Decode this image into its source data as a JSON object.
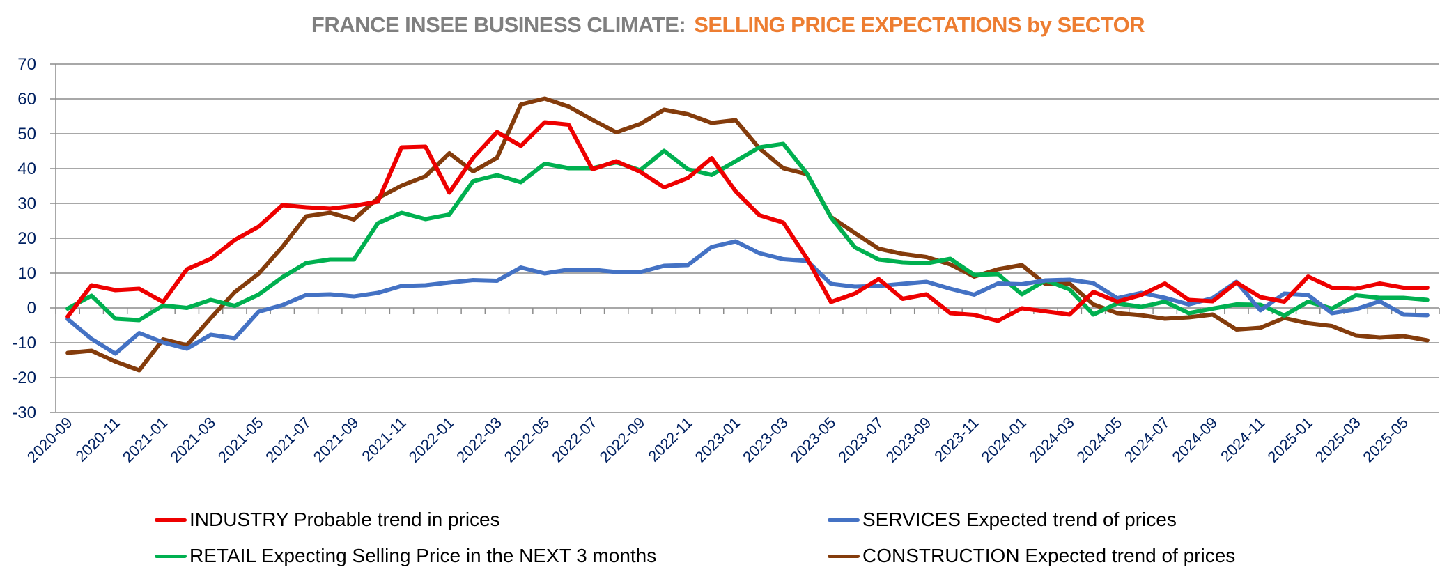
{
  "chart_data": {
    "type": "line",
    "title": "FRANCE INSEE BUSINESS CLIMATE:",
    "title_highlight": "SELLING PRICE EXPECTATIONS by SECTOR",
    "xlabel": "",
    "ylabel": "",
    "ylim": [
      -30,
      70
    ],
    "y_ticks": [
      70,
      60,
      50,
      40,
      30,
      20,
      10,
      0,
      -10,
      -20,
      -30
    ],
    "grid": true,
    "legend_position": "bottom",
    "x": [
      "2020-09",
      "2020-10",
      "2020-11",
      "2020-12",
      "2021-01",
      "2021-02",
      "2021-03",
      "2021-04",
      "2021-05",
      "2021-06",
      "2021-07",
      "2021-08",
      "2021-09",
      "2021-10",
      "2021-11",
      "2021-12",
      "2022-01",
      "2022-02",
      "2022-03",
      "2022-04",
      "2022-05",
      "2022-06",
      "2022-07",
      "2022-08",
      "2022-09",
      "2022-10",
      "2022-11",
      "2022-12",
      "2023-01",
      "2023-02",
      "2023-03",
      "2023-04",
      "2023-05",
      "2023-06",
      "2023-07",
      "2023-08",
      "2023-09",
      "2023-10",
      "2023-11",
      "2023-12",
      "2024-01",
      "2024-02",
      "2024-03",
      "2024-04",
      "2024-05",
      "2024-06",
      "2024-07",
      "2024-08",
      "2024-09",
      "2024-10",
      "2024-11",
      "2024-12",
      "2025-01",
      "2025-02",
      "2025-03",
      "2025-04",
      "2025-05",
      "2025-06"
    ],
    "x_tick_labels": [
      "2020-09",
      "2020-11",
      "2021-01",
      "2021-03",
      "2021-05",
      "2021-07",
      "2021-09",
      "2021-11",
      "2022-01",
      "2022-03",
      "2022-05",
      "2022-07",
      "2022-09",
      "2022-11",
      "2023-01",
      "2023-03",
      "2023-05",
      "2023-07",
      "2023-09",
      "2023-11",
      "2024-01",
      "2024-03",
      "2024-05",
      "2024-07",
      "2024-09",
      "2024-11",
      "2025-01",
      "2025-03",
      "2025-05"
    ],
    "series": [
      {
        "name": "INDUSTRY Probable trend in prices",
        "color": "#ee0000",
        "values": [
          -2.5,
          6.5,
          5.1,
          5.5,
          1.7,
          11.1,
          14.1,
          19.5,
          23.3,
          29.5,
          28.9,
          28.5,
          29.3,
          30.5,
          46.1,
          46.3,
          33.1,
          43.1,
          50.5,
          46.5,
          53.3,
          52.6,
          39.8,
          42.1,
          39.1,
          34.6,
          37.3,
          43.0,
          33.5,
          26.6,
          24.5,
          14.1,
          1.7,
          4.1,
          8.3,
          2.6,
          3.9,
          -1.5,
          -2.0,
          -3.7,
          -0.1,
          -1.0,
          -1.9,
          4.6,
          1.8,
          3.7,
          7.0,
          2.3,
          1.9,
          7.3,
          3.1,
          1.8,
          9.0,
          5.8,
          5.5,
          7.0,
          5.8,
          5.8
        ]
      },
      {
        "name": "SERVICES Expected trend of prices",
        "color": "#4472c4",
        "values": [
          -3.2,
          -8.9,
          -13.1,
          -7.2,
          -9.9,
          -11.7,
          -7.7,
          -8.7,
          -1.1,
          0.8,
          3.7,
          3.9,
          3.3,
          4.3,
          6.3,
          6.5,
          7.3,
          8.0,
          7.8,
          11.6,
          9.9,
          11.0,
          11.0,
          10.3,
          10.3,
          12.1,
          12.3,
          17.5,
          19.1,
          15.7,
          14.0,
          13.5,
          6.9,
          6.1,
          6.3,
          6.9,
          7.5,
          5.5,
          3.8,
          7.0,
          6.8,
          7.9,
          8.1,
          7.1,
          2.8,
          4.3,
          2.9,
          1.0,
          2.8,
          7.5,
          -0.7,
          4.1,
          3.7,
          -1.5,
          -0.4,
          1.9,
          -1.9,
          -2.1
        ]
      },
      {
        "name": "RETAIL Expecting Selling Price in the NEXT 3 months",
        "color": "#00b050",
        "values": [
          -0.2,
          3.5,
          -3.1,
          -3.5,
          0.7,
          0.0,
          2.3,
          0.6,
          3.8,
          8.8,
          12.9,
          13.9,
          13.9,
          24.3,
          27.3,
          25.5,
          26.8,
          36.4,
          38.1,
          36.1,
          41.4,
          40.1,
          40.1,
          41.8,
          39.5,
          45.1,
          39.8,
          38.2,
          42.1,
          46.1,
          47.1,
          38.5,
          26.0,
          17.4,
          13.9,
          13.1,
          12.8,
          14.1,
          9.5,
          9.7,
          3.9,
          7.9,
          5.3,
          -1.9,
          1.3,
          0.3,
          1.8,
          -1.5,
          -0.2,
          1.0,
          0.9,
          -2.2,
          1.8,
          -0.2,
          3.6,
          2.9,
          2.9,
          2.3
        ]
      },
      {
        "name": "CONSTRUCTION Expected trend of prices",
        "color": "#843c0c",
        "values": [
          -12.9,
          -12.3,
          -15.4,
          -17.9,
          -9.0,
          -10.7,
          -2.9,
          4.5,
          9.8,
          17.5,
          26.3,
          27.3,
          25.4,
          31.5,
          35.1,
          37.8,
          44.4,
          39.2,
          43.1,
          58.4,
          60.1,
          57.8,
          54.0,
          50.4,
          52.8,
          56.9,
          55.6,
          53.1,
          53.9,
          45.8,
          40.1,
          38.4,
          26.1,
          21.5,
          17.0,
          15.5,
          14.6,
          12.5,
          9.0,
          11.1,
          12.3,
          6.8,
          7.0,
          1.0,
          -1.5,
          -2.1,
          -3.1,
          -2.7,
          -1.9,
          -6.2,
          -5.7,
          -2.9,
          -4.4,
          -5.2,
          -7.9,
          -8.5,
          -8.1,
          -9.3
        ]
      }
    ]
  },
  "legend": [
    {
      "label": "INDUSTRY Probable trend in prices",
      "color": "#ee0000"
    },
    {
      "label": "SERVICES Expected trend of prices",
      "color": "#4472c4"
    },
    {
      "label": "RETAIL Expecting Selling Price in the NEXT 3 months",
      "color": "#00b050"
    },
    {
      "label": "CONSTRUCTION Expected trend of prices",
      "color": "#843c0c"
    }
  ]
}
